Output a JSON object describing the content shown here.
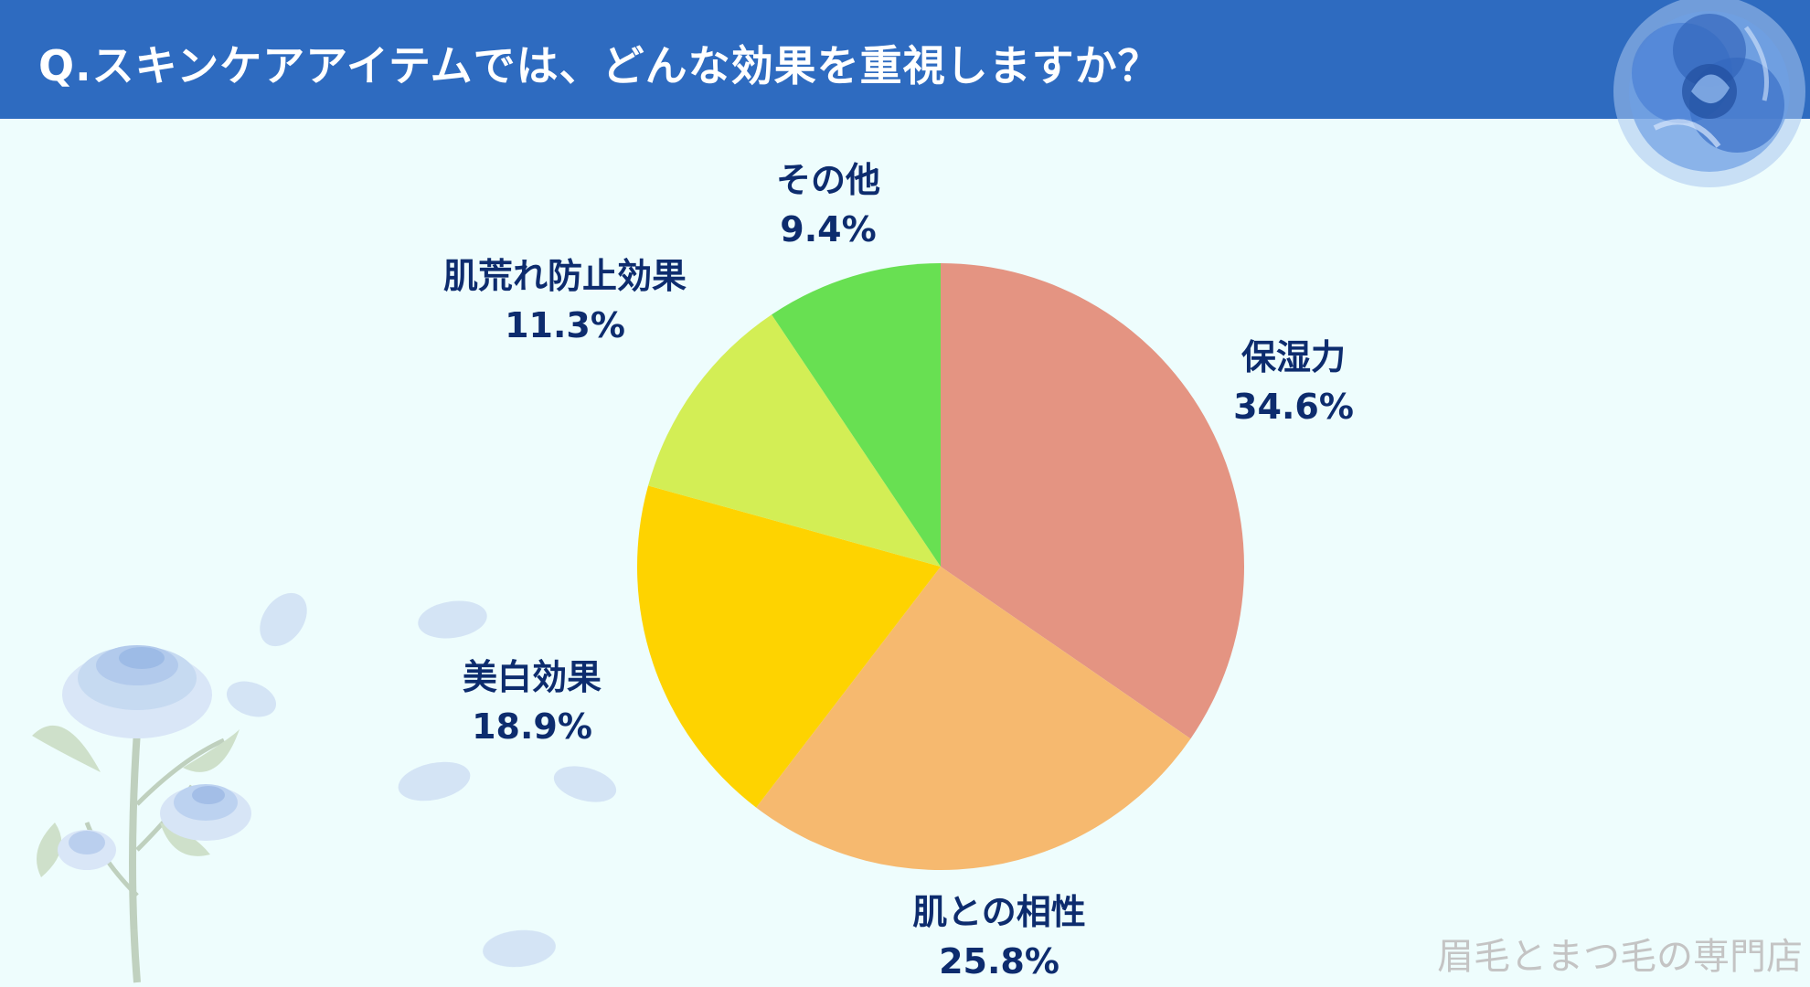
{
  "header": {
    "title": "Q.スキンケアアイテムでは、どんな効果を重視しますか？",
    "bg_color": "#2e6bc0"
  },
  "chart_data": {
    "type": "pie",
    "title": "Q.スキンケアアイテムでは、どんな効果を重視しますか？",
    "slices": [
      {
        "label": "保湿力",
        "value": 34.6,
        "value_text": "34.6%",
        "color": "#e49482"
      },
      {
        "label": "肌との相性",
        "value": 25.8,
        "value_text": "25.8%",
        "color": "#f6b96f"
      },
      {
        "label": "美白効果",
        "value": 18.9,
        "value_text": "18.9%",
        "color": "#fed300"
      },
      {
        "label": "肌荒れ防止効果",
        "value": 11.3,
        "value_text": "11.3%",
        "color": "#d3ee55"
      },
      {
        "label": "その他",
        "value": 9.4,
        "value_text": "9.4%",
        "color": "#68e052"
      }
    ],
    "start": "12 o'clock",
    "direction": "clockwise",
    "legend": "none (labels placed around pie)"
  },
  "watermark": "眉毛とまつ毛の専門店",
  "decorations": [
    "blue-rose-icon",
    "rose-stem-illustration",
    "petal-icon"
  ]
}
